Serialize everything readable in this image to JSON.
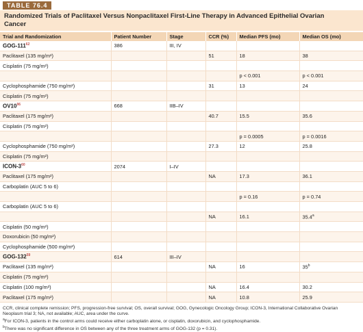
{
  "header": {
    "label": "TABLE 76.4",
    "title": "Randomized Trials of Paclitaxel Versus Nonpaclitaxel First-Line Therapy in Advanced Epithelial Ovarian Cancer"
  },
  "table": {
    "columns": [
      "Trial and Randomization",
      "Patient Number",
      "Stage",
      "CCR (%)",
      "Median PFS (mo)",
      "Median OS (mo)"
    ],
    "rows": [
      [
        {
          "text": "GOG-111",
          "sup": "62"
        },
        "386",
        "III, IV",
        null,
        null,
        null
      ],
      [
        "Paclitaxel (135 mg/m²)",
        null,
        null,
        "51",
        "18",
        "38"
      ],
      [
        "Cisplatin (75 mg/m²)",
        null,
        null,
        null,
        null,
        null
      ],
      [
        null,
        null,
        null,
        null,
        "p < 0.001",
        "p < 0.001"
      ],
      [
        "Cyclophosphamide (750 mg/m²)",
        null,
        null,
        "31",
        "13",
        "24"
      ],
      [
        "Cisplatin (75 mg/m²)",
        null,
        null,
        null,
        null,
        null
      ],
      [
        {
          "text": "OV10",
          "sup": "96"
        },
        "668",
        "IIB–IV",
        null,
        null,
        null
      ],
      [
        "Paclitaxel (175 mg/m²)",
        null,
        null,
        "40.7",
        "15.5",
        "35.6"
      ],
      [
        "Cisplatin (75 mg/m²)",
        null,
        null,
        null,
        null,
        null
      ],
      [
        null,
        null,
        null,
        null,
        "p = 0.0005",
        "p = 0.0016"
      ],
      [
        "Cyclophosphamide (750 mg/m²)",
        null,
        null,
        "27.3",
        "12",
        "25.8"
      ],
      [
        "Cisplatin (75 mg/m²)",
        null,
        null,
        null,
        null,
        null
      ],
      [
        {
          "text": "ICON-3",
          "sup": "60"
        },
        "2074",
        "I–IV",
        null,
        null,
        null
      ],
      [
        "Paclitaxel (175 mg/m²)",
        null,
        null,
        "NA",
        "17.3",
        "36.1"
      ],
      [
        "Carboplatin (AUC 5 to 6)",
        null,
        null,
        null,
        null,
        null
      ],
      [
        null,
        null,
        null,
        null,
        "p = 0.16",
        "p = 0.74"
      ],
      [
        "Carboplatin (AUC 5 to 6)",
        null,
        null,
        null,
        null,
        null
      ],
      [
        null,
        null,
        null,
        "NA",
        "16.1",
        {
          "text": "35.4",
          "sup": "a"
        }
      ],
      [
        "Cisplatin (50 mg/m²)",
        null,
        null,
        null,
        null,
        null
      ],
      [
        "Doxorubicin (50 mg/m²)",
        null,
        null,
        null,
        null,
        null
      ],
      [
        "Cyclophosphamide (500 mg/m²)",
        null,
        null,
        null,
        null,
        null
      ],
      [
        {
          "text": "GOG-132",
          "sup": "59"
        },
        "614",
        "III–IV",
        null,
        null,
        null
      ],
      [
        "Paclitaxel (135 mg/m²)",
        null,
        null,
        "NA",
        "16",
        {
          "text": "35",
          "sup": "b"
        }
      ],
      [
        "Cisplatin (75 mg/m²)",
        null,
        null,
        null,
        null,
        null
      ],
      [
        "Cisplatin (100 mg/m²)",
        null,
        null,
        "NA",
        "16.4",
        "30.2"
      ],
      [
        "Paclitaxel (175 mg/m²)",
        null,
        null,
        "NA",
        "10.8",
        "25.9"
      ]
    ]
  },
  "footnotes": [
    {
      "text": "CCR, clinical complete remission; PFS, progression-free survival; OS, overall survival; GOG, Gynecologic Oncology Group; ICON-3, International Collaborative Ovarian Neoplasm trial 3; NA, not available; AUC, area under the curve."
    },
    {
      "mark": "a",
      "text": "For ICON-3, patients in the control arms could receive either carboplatin alone, or cisplatin, doxorubicin, and cyclophosphamide."
    },
    {
      "mark": "b",
      "text": "There was no significant difference in OS between any of the three treatment arms of GOG-132 (p = 0.31)."
    }
  ]
}
